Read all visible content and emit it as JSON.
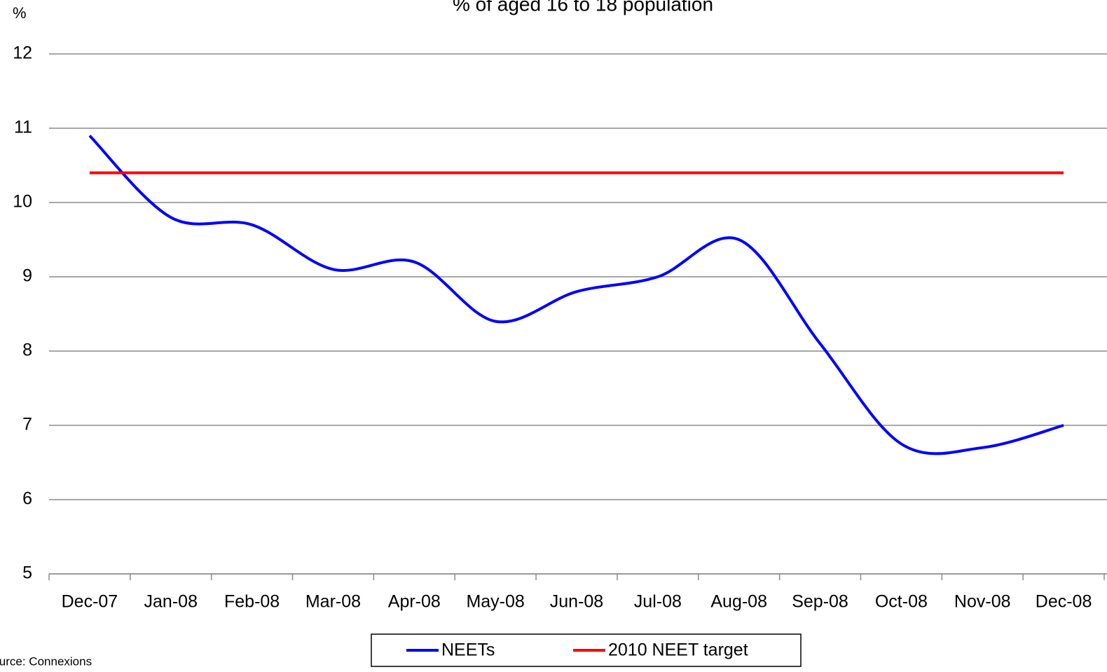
{
  "chart_data": {
    "type": "line",
    "title": "% of aged 16 to 18 population",
    "y_label": "%",
    "source": "Source: Connexions",
    "categories": [
      "Dec-07",
      "Jan-08",
      "Feb-08",
      "Mar-08",
      "Apr-08",
      "May-08",
      "Jun-08",
      "Jul-08",
      "Aug-08",
      "Sep-08",
      "Oct-08",
      "Nov-08",
      "Dec-08"
    ],
    "series": [
      {
        "name": "NEETs",
        "color": "#0000ff",
        "values": [
          10.9,
          9.8,
          9.7,
          9.1,
          9.2,
          8.4,
          8.8,
          9.0,
          9.5,
          8.1,
          6.75,
          6.7,
          7.0
        ]
      },
      {
        "name": "2010 NEET target",
        "color": "#ff0000",
        "values": [
          10.4,
          10.4,
          10.4,
          10.4,
          10.4,
          10.4,
          10.4,
          10.4,
          10.4,
          10.4,
          10.4,
          10.4,
          10.4
        ]
      }
    ],
    "ylim": [
      5,
      12
    ],
    "yticks": [
      5,
      6,
      7,
      8,
      9,
      10,
      11,
      12
    ],
    "grid": true,
    "legend": "bottom"
  }
}
